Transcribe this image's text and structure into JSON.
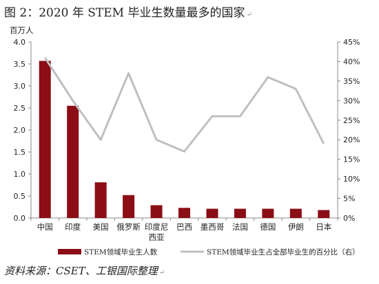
{
  "title": "图 2：2020 年 STEM 毕业生数量最多的国家",
  "title_mark": "↵",
  "source": "资料来源：CSET、工银国际整理",
  "source_mark": "↵",
  "colors": {
    "bar": "#8B0D15",
    "line": "#BFBFBF",
    "axis": "#888888"
  },
  "chart_data": {
    "type": "bar+line",
    "categories": [
      "中国",
      "印度",
      "美国",
      "俄罗斯",
      "印度尼西亚",
      "巴西",
      "墨西哥",
      "法国",
      "德国",
      "伊朗",
      "日本"
    ],
    "y_left": {
      "label": "百万人",
      "min": 0,
      "max": 4.0,
      "step": 0.5,
      "ticks": [
        "0.0",
        "0.5",
        "1.0",
        "1.5",
        "2.0",
        "2.5",
        "3.0",
        "3.5",
        "4.0"
      ]
    },
    "y_right": {
      "min": 0,
      "max": 45,
      "step": 5,
      "ticks": [
        "0%",
        "5%",
        "10%",
        "15%",
        "20%",
        "25%",
        "30%",
        "35%",
        "40%",
        "45%"
      ]
    },
    "series": [
      {
        "name": "STEM领域毕业生人数",
        "type": "bar",
        "axis": "left",
        "values": [
          3.57,
          2.55,
          0.81,
          0.52,
          0.29,
          0.23,
          0.21,
          0.21,
          0.21,
          0.21,
          0.18
        ]
      },
      {
        "name": "STEM领域毕业生占全部毕业生的百分比（右）",
        "type": "line",
        "axis": "right",
        "values": [
          41,
          30,
          20,
          37,
          20,
          17,
          26,
          26,
          36,
          33,
          19
        ]
      }
    ],
    "legend": "bottom"
  }
}
